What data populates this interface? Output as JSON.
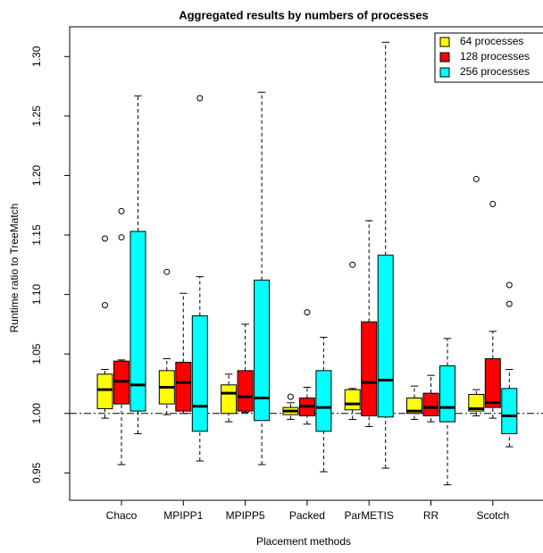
{
  "chart_data": {
    "type": "boxplot",
    "title": "Aggregated results by numbers of processes",
    "x_label": "Placement methods",
    "y_label": "Runtime ratio to TreeMatch",
    "categories": [
      "Chaco",
      "MPIPP1",
      "MPIPP5",
      "Packed",
      "ParMETIS",
      "RR",
      "Scotch"
    ],
    "ylim": [
      0.927,
      1.325
    ],
    "yticks": [
      0.95,
      1.05,
      {
        "value": 1.0,
        "label": "1.00"
      },
      {
        "value": 1.1,
        "label": "1.10"
      },
      1.15,
      {
        "value": 1.2,
        "label": "1.20"
      },
      1.25,
      {
        "value": 1.3,
        "label": "1.30"
      }
    ],
    "hline": 1.0,
    "legend": "topright",
    "series": [
      {
        "name": "64 processes",
        "color": "#ffff00",
        "values": [
          {
            "min": 0.996,
            "q1": 1.004,
            "median": 1.02,
            "q3": 1.033,
            "max": 1.037,
            "outliers": [
              1.091,
              1.147
            ]
          },
          {
            "min": 0.999,
            "q1": 1.008,
            "median": 1.022,
            "q3": 1.036,
            "max": 1.046,
            "outliers": [
              1.119
            ]
          },
          {
            "min": 0.993,
            "q1": 1.0,
            "median": 1.017,
            "q3": 1.024,
            "max": 1.033,
            "outliers": []
          },
          {
            "min": 0.995,
            "q1": 0.999,
            "median": 1.002,
            "q3": 1.005,
            "max": 1.009,
            "outliers": [
              1.014
            ]
          },
          {
            "min": 0.995,
            "q1": 1.003,
            "median": 1.008,
            "q3": 1.02,
            "max": 1.021,
            "outliers": [
              1.125
            ]
          },
          {
            "min": 0.995,
            "q1": 1.0,
            "median": 1.002,
            "q3": 1.013,
            "max": 1.023,
            "outliers": []
          },
          {
            "min": 0.998,
            "q1": 1.002,
            "median": 1.004,
            "q3": 1.016,
            "max": 1.02,
            "outliers": [
              1.197
            ]
          }
        ]
      },
      {
        "name": "128 processes",
        "color": "#ff0000",
        "values": [
          {
            "min": 0.957,
            "q1": 1.008,
            "median": 1.027,
            "q3": 1.044,
            "max": 1.045,
            "outliers": [
              1.148,
              1.17
            ]
          },
          {
            "min": 1.0,
            "q1": 1.002,
            "median": 1.026,
            "q3": 1.043,
            "max": 1.101,
            "outliers": []
          },
          {
            "min": 1.001,
            "q1": 1.002,
            "median": 1.014,
            "q3": 1.036,
            "max": 1.075,
            "outliers": []
          },
          {
            "min": 0.991,
            "q1": 0.998,
            "median": 1.006,
            "q3": 1.013,
            "max": 1.022,
            "outliers": [
              1.085
            ]
          },
          {
            "min": 0.989,
            "q1": 0.998,
            "median": 1.026,
            "q3": 1.077,
            "max": 1.162,
            "outliers": []
          },
          {
            "min": 0.993,
            "q1": 0.998,
            "median": 1.005,
            "q3": 1.017,
            "max": 1.032,
            "outliers": []
          },
          {
            "min": 0.996,
            "q1": 1.005,
            "median": 1.009,
            "q3": 1.046,
            "max": 1.069,
            "outliers": [
              1.176
            ]
          }
        ]
      },
      {
        "name": "256 processes",
        "color": "#00ffff",
        "values": [
          {
            "min": 0.983,
            "q1": 1.002,
            "median": 1.024,
            "q3": 1.153,
            "max": 1.267,
            "outliers": []
          },
          {
            "min": 0.96,
            "q1": 0.985,
            "median": 1.006,
            "q3": 1.082,
            "max": 1.115,
            "outliers": [
              1.265
            ]
          },
          {
            "min": 0.957,
            "q1": 0.994,
            "median": 1.013,
            "q3": 1.112,
            "max": 1.27,
            "outliers": []
          },
          {
            "min": 0.951,
            "q1": 0.985,
            "median": 1.005,
            "q3": 1.036,
            "max": 1.064,
            "outliers": []
          },
          {
            "min": 0.954,
            "q1": 0.997,
            "median": 1.028,
            "q3": 1.133,
            "max": 1.312,
            "outliers": []
          },
          {
            "min": 0.94,
            "q1": 0.993,
            "median": 1.005,
            "q3": 1.04,
            "max": 1.063,
            "outliers": []
          },
          {
            "min": 0.972,
            "q1": 0.983,
            "median": 0.998,
            "q3": 1.021,
            "max": 1.037,
            "outliers": [
              1.092,
              1.108
            ]
          }
        ]
      }
    ]
  }
}
